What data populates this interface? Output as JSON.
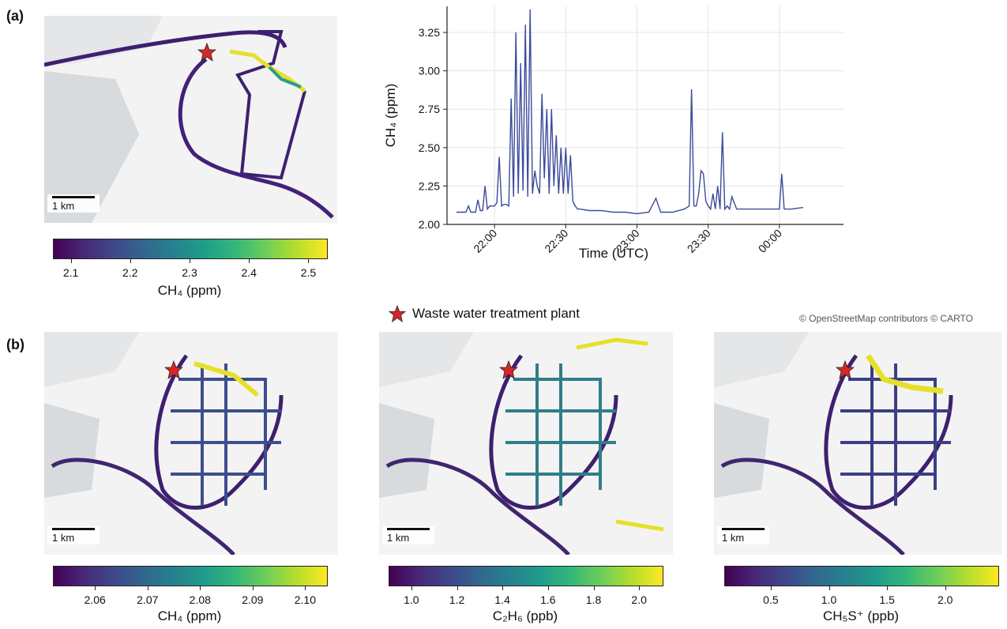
{
  "panel_a_label": "(a)",
  "panel_b_label": "(b)",
  "scale_label": "1 km",
  "legend_label": "Waste water treatment plant",
  "credit": "© OpenStreetMap contributors © CARTO",
  "colors": {
    "accent": "#d62728",
    "line": "#3b4b9a",
    "land": "#f3f3f3",
    "water": "#c9cfd3"
  },
  "colorbars": [
    {
      "label": "CH₄ (ppm)",
      "min": 2.07,
      "max": 2.53,
      "ticks": [
        "2.1",
        "2.2",
        "2.3",
        "2.4",
        "2.5"
      ],
      "tick_values": [
        2.1,
        2.2,
        2.3,
        2.4,
        2.5
      ]
    },
    {
      "label": "CH₄ (ppm)",
      "min": 2.052,
      "max": 2.104,
      "ticks": [
        "2.06",
        "2.07",
        "2.08",
        "2.09",
        "2.10"
      ],
      "tick_values": [
        2.06,
        2.07,
        2.08,
        2.09,
        2.1
      ]
    },
    {
      "label": "C₂H₆ (ppb)",
      "min": 0.9,
      "max": 2.1,
      "ticks": [
        "1.0",
        "1.2",
        "1.4",
        "1.6",
        "1.8",
        "2.0"
      ],
      "tick_values": [
        1.0,
        1.2,
        1.4,
        1.6,
        1.8,
        2.0
      ]
    },
    {
      "label": "CH₅S⁺ (ppb)",
      "min": 0.1,
      "max": 2.45,
      "ticks": [
        "0.5",
        "1.0",
        "1.5",
        "2.0"
      ],
      "tick_values": [
        0.5,
        1.0,
        1.5,
        2.0
      ]
    }
  ],
  "chart_data": {
    "type": "line",
    "xlabel": "Time (UTC)",
    "ylabel": "CH₄ (ppm)",
    "ylim": [
      2.0,
      3.42
    ],
    "xlim_minutes": [
      -20,
      147
    ],
    "x_ticks": [
      {
        "label": "22:00",
        "min": 0
      },
      {
        "label": "22:30",
        "min": 30
      },
      {
        "label": "23:00",
        "min": 60
      },
      {
        "label": "23:30",
        "min": 90
      },
      {
        "label": "00:00",
        "min": 120
      }
    ],
    "y_ticks": [
      {
        "label": "2.00",
        "v": 2.0
      },
      {
        "label": "2.25",
        "v": 2.25
      },
      {
        "label": "2.50",
        "v": 2.5
      },
      {
        "label": "2.75",
        "v": 2.75
      },
      {
        "label": "3.00",
        "v": 3.0
      },
      {
        "label": "3.25",
        "v": 3.25
      }
    ],
    "grid": true,
    "series": [
      {
        "x_minutes": [
          -16,
          -12,
          -11,
          -10,
          -8,
          -7,
          -6,
          -5,
          -4,
          -3,
          -2,
          -1,
          0,
          1,
          2,
          3,
          4,
          5,
          6,
          7,
          8,
          9,
          10,
          11,
          12,
          13,
          14,
          15,
          16,
          17,
          18,
          19,
          20,
          21,
          22,
          23,
          24,
          25,
          26,
          27,
          28,
          29,
          30,
          31,
          32,
          33,
          34,
          35,
          36,
          40,
          45,
          50,
          55,
          60,
          65,
          68,
          70,
          75,
          80,
          82,
          83,
          84,
          85,
          86,
          87,
          88,
          89,
          90,
          91,
          92,
          93,
          94,
          95,
          96,
          97,
          98,
          99,
          100,
          102,
          105,
          110,
          115,
          120,
          121,
          122,
          125,
          130
        ],
        "y": [
          2.08,
          2.08,
          2.12,
          2.08,
          2.08,
          2.16,
          2.09,
          2.09,
          2.25,
          2.1,
          2.12,
          2.12,
          2.12,
          2.14,
          2.44,
          2.12,
          2.13,
          2.13,
          2.12,
          2.82,
          2.18,
          3.25,
          2.2,
          3.05,
          2.22,
          3.3,
          2.18,
          3.4,
          2.2,
          2.35,
          2.25,
          2.2,
          2.85,
          2.3,
          2.75,
          2.2,
          2.75,
          2.25,
          2.58,
          2.2,
          2.5,
          2.2,
          2.5,
          2.2,
          2.45,
          2.15,
          2.12,
          2.1,
          2.1,
          2.09,
          2.09,
          2.08,
          2.08,
          2.07,
          2.08,
          2.17,
          2.08,
          2.08,
          2.1,
          2.12,
          2.88,
          2.12,
          2.12,
          2.2,
          2.35,
          2.33,
          2.15,
          2.12,
          2.1,
          2.2,
          2.1,
          2.25,
          2.1,
          2.6,
          2.1,
          2.12,
          2.1,
          2.18,
          2.1,
          2.1,
          2.1,
          2.1,
          2.1,
          2.33,
          2.1,
          2.1,
          2.11
        ]
      }
    ]
  }
}
